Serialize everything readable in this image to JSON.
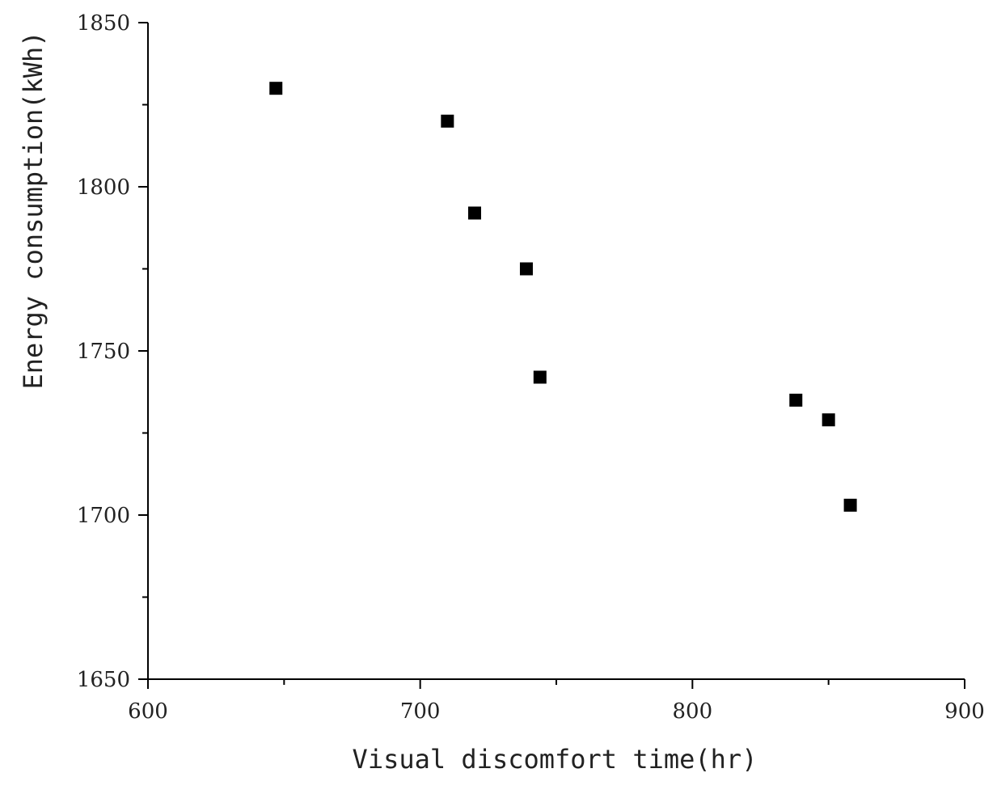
{
  "chart_data": {
    "type": "scatter",
    "title": "",
    "xlabel": "Visual discomfort time(hr)",
    "ylabel": "Energy consumption(kWh)",
    "xlim": [
      600,
      900
    ],
    "ylim": [
      1650,
      1850
    ],
    "x_ticks": [
      "600",
      "700",
      "800",
      "900"
    ],
    "y_ticks": [
      "1650",
      "1700",
      "1750",
      "1800",
      "1850"
    ],
    "grid": false,
    "legend": "none",
    "marker": "square",
    "marker_color": "#000000",
    "series": [
      {
        "x": [
          647,
          710,
          720,
          739,
          744,
          838,
          850,
          858
        ],
        "y": [
          1830,
          1820,
          1792,
          1775,
          1742,
          1735,
          1729,
          1703
        ]
      }
    ]
  }
}
